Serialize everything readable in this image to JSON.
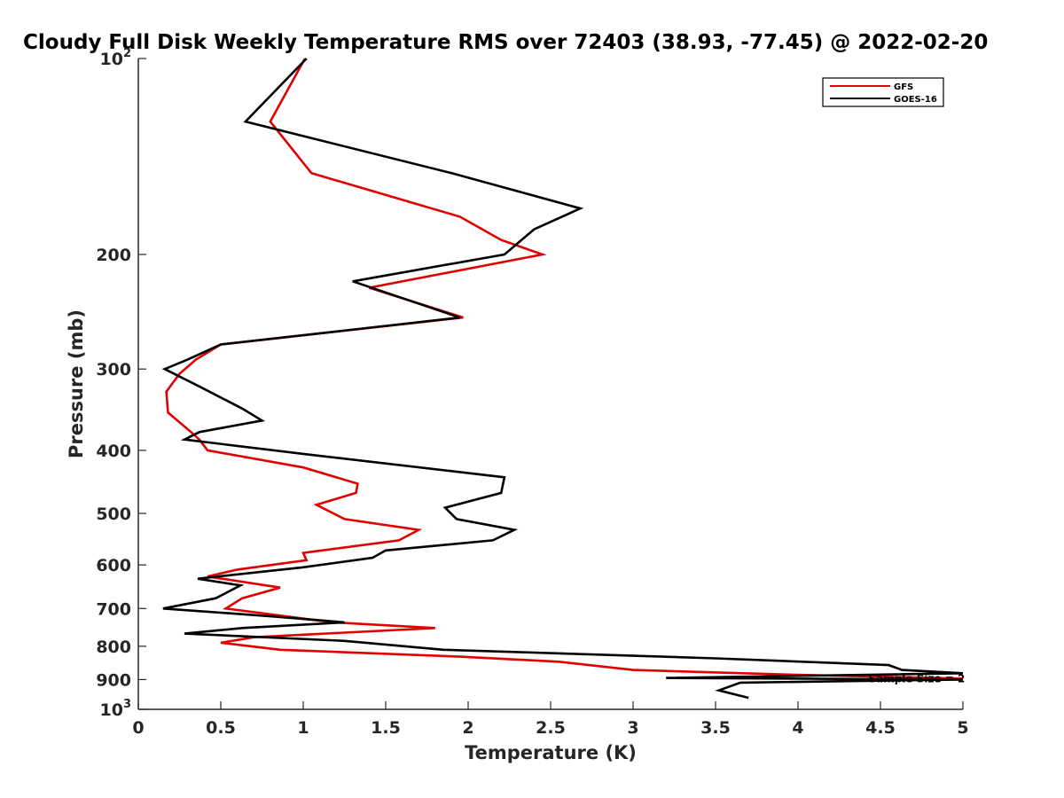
{
  "chart_data": {
    "type": "line",
    "title": "Cloudy Full Disk Weekly Temperature RMS over 72403 (38.93, -77.45) @ 2022-02-20",
    "xlabel": "Temperature (K)",
    "ylabel": "Pressure (mb)",
    "xlim": [
      0,
      5
    ],
    "ylim": [
      100,
      1000
    ],
    "y_scale": "log",
    "y_reversed": true,
    "grid": false,
    "legend_placement": "top-right",
    "x_ticks": [
      {
        "value": 0,
        "label": "0"
      },
      {
        "value": 0.5,
        "label": "0.5"
      },
      {
        "value": 1,
        "label": "1"
      },
      {
        "value": 1.5,
        "label": "1.5"
      },
      {
        "value": 2,
        "label": "2"
      },
      {
        "value": 2.5,
        "label": "2.5"
      },
      {
        "value": 3,
        "label": "3"
      },
      {
        "value": 3.5,
        "label": "3.5"
      },
      {
        "value": 4,
        "label": "4"
      },
      {
        "value": 4.5,
        "label": "4.5"
      },
      {
        "value": 5,
        "label": "5"
      }
    ],
    "y_ticks": [
      {
        "value": 100,
        "base": "10",
        "exp": "2"
      },
      {
        "value": 200,
        "base": "200",
        "exp": ""
      },
      {
        "value": 300,
        "base": "300",
        "exp": ""
      },
      {
        "value": 400,
        "base": "400",
        "exp": ""
      },
      {
        "value": 500,
        "base": "500",
        "exp": ""
      },
      {
        "value": 600,
        "base": "600",
        "exp": ""
      },
      {
        "value": 700,
        "base": "700",
        "exp": ""
      },
      {
        "value": 800,
        "base": "800",
        "exp": ""
      },
      {
        "value": 900,
        "base": "900",
        "exp": ""
      },
      {
        "value": 1000,
        "base": "10",
        "exp": "3"
      }
    ],
    "series": [
      {
        "name": "GFS",
        "color": "#e00000",
        "points": [
          [
            1.01,
            100
          ],
          [
            0.8,
            125
          ],
          [
            1.05,
            150
          ],
          [
            1.95,
            175
          ],
          [
            2.2,
            190
          ],
          [
            2.45,
            200
          ],
          [
            1.4,
            225
          ],
          [
            1.97,
            250
          ],
          [
            0.5,
            275
          ],
          [
            0.35,
            290
          ],
          [
            0.25,
            305
          ],
          [
            0.17,
            325
          ],
          [
            0.18,
            350
          ],
          [
            0.32,
            375
          ],
          [
            0.37,
            385
          ],
          [
            0.42,
            400
          ],
          [
            1.0,
            425
          ],
          [
            1.33,
            450
          ],
          [
            1.32,
            465
          ],
          [
            1.08,
            485
          ],
          [
            1.25,
            510
          ],
          [
            1.7,
            530
          ],
          [
            1.58,
            550
          ],
          [
            1.0,
            575
          ],
          [
            1.02,
            590
          ],
          [
            0.6,
            610
          ],
          [
            0.42,
            625
          ],
          [
            0.86,
            650
          ],
          [
            0.63,
            675
          ],
          [
            0.53,
            700
          ],
          [
            1.18,
            735
          ],
          [
            1.8,
            750
          ],
          [
            0.7,
            775
          ],
          [
            0.5,
            790
          ],
          [
            0.86,
            810
          ],
          [
            1.95,
            830
          ],
          [
            2.55,
            845
          ],
          [
            3.0,
            870
          ],
          [
            4.0,
            885
          ],
          [
            5.0,
            897
          ]
        ]
      },
      {
        "name": "GOES-16",
        "color": "#000000",
        "points": [
          [
            1.02,
            100
          ],
          [
            0.65,
            125
          ],
          [
            1.9,
            150
          ],
          [
            2.68,
            170
          ],
          [
            2.4,
            183
          ],
          [
            2.22,
            200
          ],
          [
            1.3,
            220
          ],
          [
            1.95,
            250
          ],
          [
            0.5,
            275
          ],
          [
            0.3,
            290
          ],
          [
            0.16,
            300
          ],
          [
            0.38,
            320
          ],
          [
            0.63,
            345
          ],
          [
            0.75,
            360
          ],
          [
            0.37,
            375
          ],
          [
            0.28,
            385
          ],
          [
            1.0,
            405
          ],
          [
            2.22,
            440
          ],
          [
            2.2,
            465
          ],
          [
            1.86,
            490
          ],
          [
            1.93,
            510
          ],
          [
            2.28,
            530
          ],
          [
            2.15,
            550
          ],
          [
            1.5,
            570
          ],
          [
            1.42,
            585
          ],
          [
            1.0,
            605
          ],
          [
            0.36,
            630
          ],
          [
            0.62,
            645
          ],
          [
            0.47,
            675
          ],
          [
            0.15,
            700
          ],
          [
            0.82,
            720
          ],
          [
            1.25,
            735
          ],
          [
            0.63,
            750
          ],
          [
            0.28,
            765
          ],
          [
            1.25,
            785
          ],
          [
            1.85,
            810
          ],
          [
            3.5,
            835
          ],
          [
            4.55,
            855
          ],
          [
            4.63,
            870
          ],
          [
            5.0,
            880
          ],
          [
            3.2,
            895
          ],
          [
            5.0,
            900
          ],
          [
            3.65,
            910
          ],
          [
            3.52,
            935
          ],
          [
            3.7,
            960
          ]
        ]
      }
    ],
    "annotations": [
      {
        "text": "Sample Size = 2",
        "x": 4.72,
        "y": 897
      }
    ]
  }
}
